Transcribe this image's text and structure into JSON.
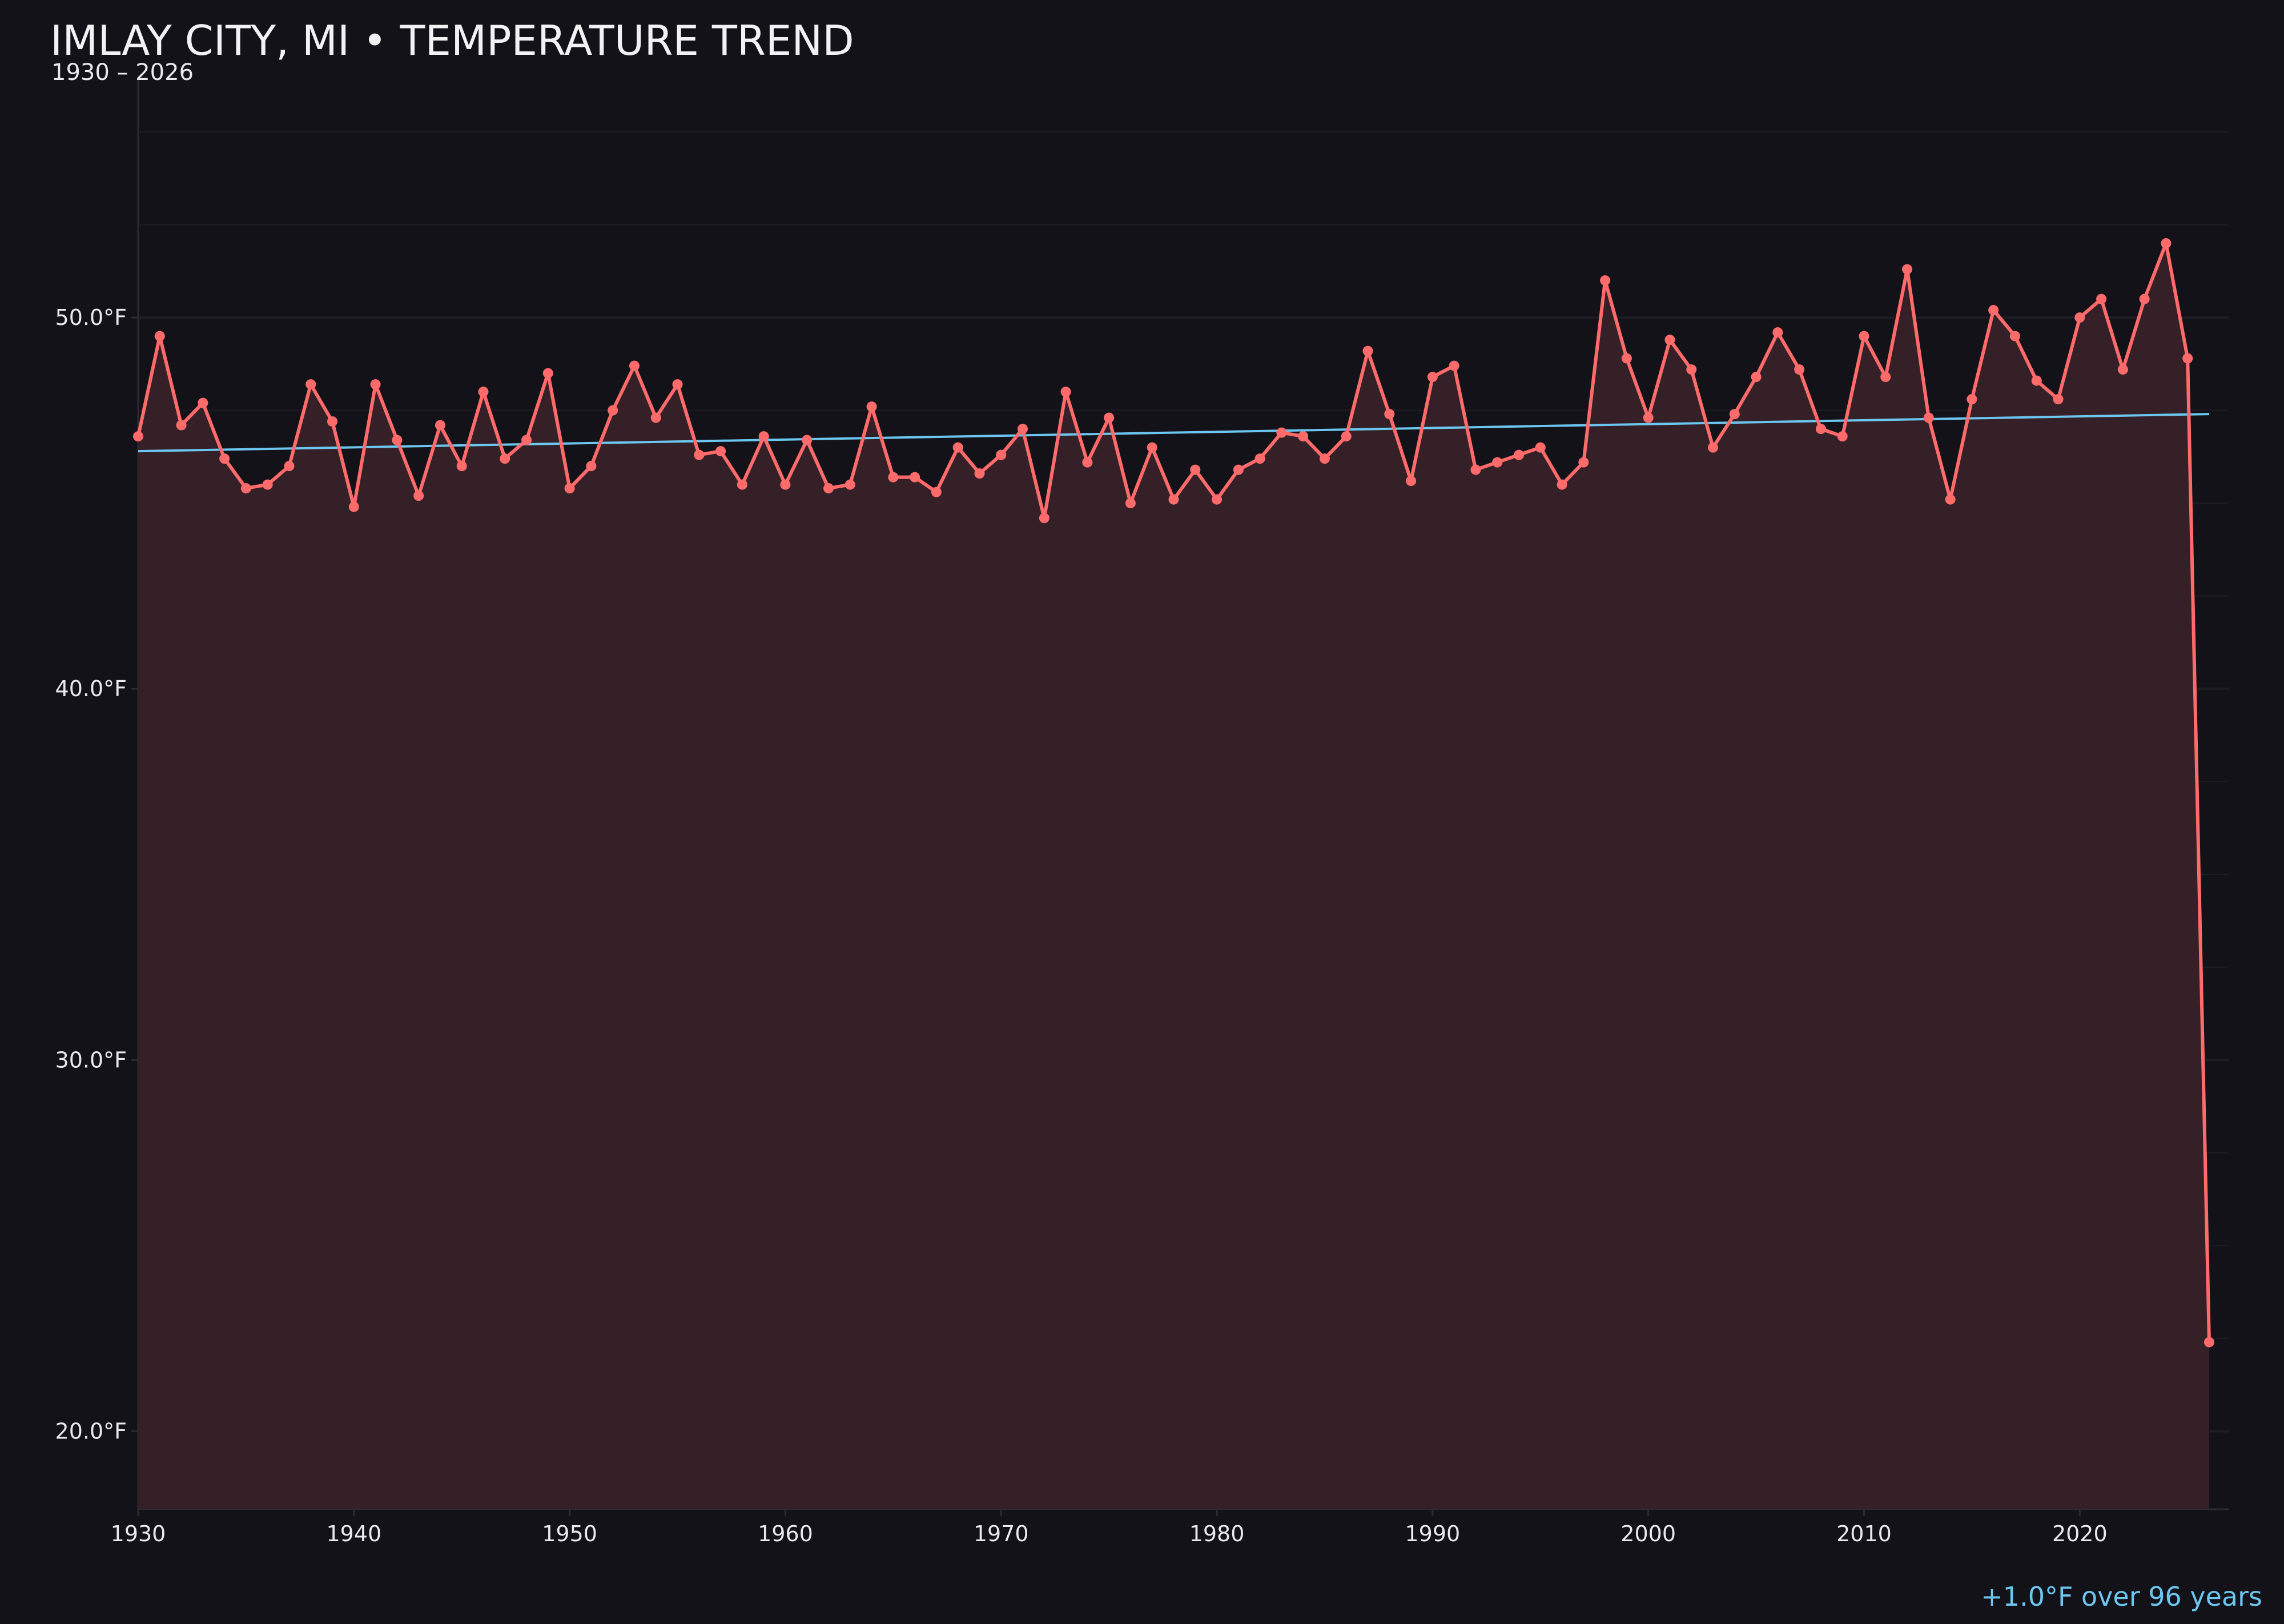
{
  "header": {
    "title": "IMLAY CITY, MI • TEMPERATURE TREND",
    "subtitle": "1930 – 2026"
  },
  "annotation": "+1.0°F over 96 years",
  "colors": {
    "background": "#131218",
    "line": "#ff6b6b",
    "fill": "#352027",
    "trend": "#6cc6f0",
    "grid": "#1e1d23"
  },
  "chart_data": {
    "type": "line",
    "title": "IMLAY CITY, MI • TEMPERATURE TREND",
    "subtitle": "1930 – 2026",
    "xlabel": "",
    "ylabel": "",
    "xlim": [
      1930,
      2026.9
    ],
    "ylim": [
      17.9,
      56.4
    ],
    "grid": true,
    "x_ticks": [
      "1930",
      "1940",
      "1950",
      "1960",
      "1970",
      "1980",
      "1990",
      "2000",
      "2010",
      "2020"
    ],
    "y_ticks": [
      "20.0°F",
      "30.0°F",
      "40.0°F",
      "50.0°F"
    ],
    "y_tick_values": [
      20,
      30,
      40,
      50
    ],
    "x": [
      1930,
      1931,
      1932,
      1933,
      1934,
      1935,
      1936,
      1937,
      1938,
      1939,
      1940,
      1941,
      1942,
      1943,
      1944,
      1945,
      1946,
      1947,
      1948,
      1949,
      1950,
      1951,
      1952,
      1953,
      1954,
      1955,
      1956,
      1957,
      1958,
      1959,
      1960,
      1961,
      1962,
      1963,
      1964,
      1965,
      1966,
      1967,
      1968,
      1969,
      1970,
      1971,
      1972,
      1973,
      1974,
      1975,
      1976,
      1977,
      1978,
      1979,
      1980,
      1981,
      1982,
      1983,
      1984,
      1985,
      1986,
      1987,
      1988,
      1989,
      1990,
      1991,
      1992,
      1993,
      1994,
      1995,
      1996,
      1997,
      1998,
      1999,
      2000,
      2001,
      2002,
      2003,
      2004,
      2005,
      2006,
      2007,
      2008,
      2009,
      2010,
      2011,
      2012,
      2013,
      2014,
      2015,
      2016,
      2017,
      2018,
      2019,
      2020,
      2021,
      2022,
      2023,
      2024,
      2025,
      2026
    ],
    "series": [
      {
        "values": [
          46.8,
          49.5,
          47.1,
          47.7,
          46.2,
          45.4,
          45.5,
          46.0,
          48.2,
          47.2,
          44.9,
          48.2,
          46.7,
          45.2,
          47.1,
          46.0,
          48.0,
          46.2,
          46.7,
          48.5,
          45.4,
          46.0,
          47.5,
          48.7,
          47.3,
          48.2,
          46.3,
          46.4,
          45.5,
          46.8,
          45.5,
          46.7,
          45.4,
          45.5,
          47.6,
          45.7,
          45.7,
          45.3,
          46.5,
          45.8,
          46.3,
          47.0,
          44.6,
          48.0,
          46.1,
          47.3,
          45.0,
          46.5,
          45.1,
          45.9,
          45.1,
          45.9,
          46.2,
          46.9,
          46.8,
          46.2,
          46.8,
          49.1,
          47.4,
          45.6,
          48.4,
          48.7,
          45.9,
          46.1,
          46.3,
          46.5,
          45.5,
          46.1,
          51.0,
          48.9,
          47.3,
          49.4,
          48.6,
          46.5,
          47.4,
          48.4,
          49.6,
          48.6,
          47.0,
          46.8,
          49.5,
          48.4,
          51.3,
          47.3,
          45.1,
          47.8,
          50.2,
          49.5,
          48.3,
          47.8,
          50.0,
          50.5,
          48.6,
          50.5,
          52.0,
          48.9,
          22.4
        ]
      }
    ],
    "trend": {
      "x": [
        1930,
        2026
      ],
      "y": [
        46.4,
        47.4
      ]
    }
  }
}
